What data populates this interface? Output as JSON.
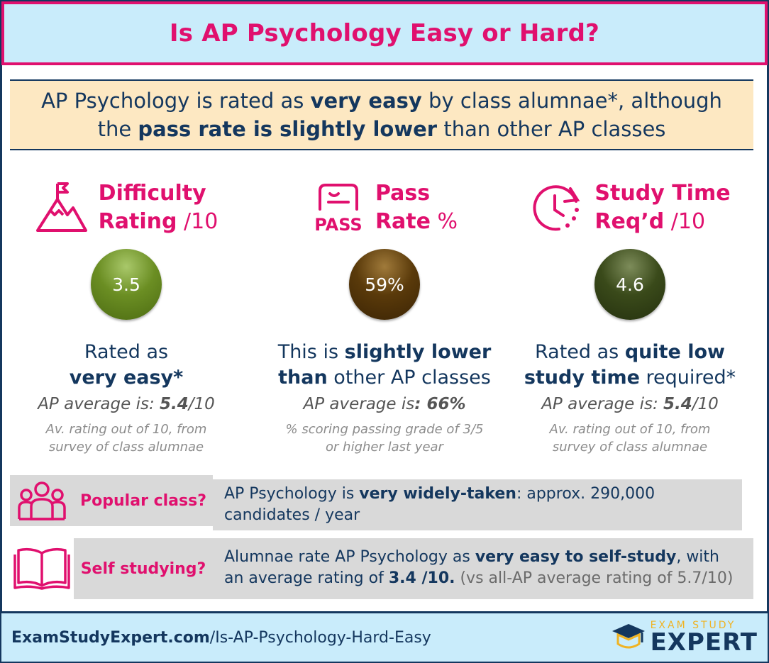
{
  "title": "Is AP Psychology Easy or Hard?",
  "summary": {
    "line1_a": "AP Psychology is rated as ",
    "line1_b": "very easy",
    "line1_c": " by class alumnae*, although",
    "line2_a": "the ",
    "line2_b": "pass rate is slightly lower",
    "line2_c": " than other AP classes"
  },
  "colors": {
    "accent": "#e0106e",
    "navy": "#14375e",
    "title_bg": "#c9ecfb",
    "summary_bg": "#fde8c2",
    "row_bg": "#d9d9d9",
    "ball_difficulty": "#6b8e23",
    "ball_pass": "#5a3a0a",
    "ball_time": "#3a4a1a"
  },
  "difficulty": {
    "icon": "mountain-flag-icon",
    "title_line1": "Difficulty",
    "title_line2": "Rating",
    "unit": " /10",
    "value": "3.5",
    "verdict_a": "Rated as",
    "verdict_b": "very easy*",
    "avg_a": "AP average is: ",
    "avg_b": "5.4",
    "avg_c": "/10",
    "note_line1": "Av. rating out of 10, from",
    "note_line2": "survey of class alumnae"
  },
  "pass": {
    "icon": "pass-icon",
    "icon_text": "PASS",
    "title_line1": "Pass",
    "title_line2": "Rate",
    "unit": " %",
    "value": "59%",
    "verdict_a": "This is ",
    "verdict_b": "slightly lower",
    "verdict_c": "than",
    "verdict_d": " other AP classes",
    "avg_a": "AP average is",
    "avg_b": ": 66%",
    "note_line1": "% scoring passing grade of 3/5",
    "note_line2": "or higher last year"
  },
  "study": {
    "icon": "clock-icon",
    "title_line1": "Study Time",
    "title_line2": "Req’d",
    "unit": " /10",
    "value": "4.6",
    "verdict_a": "Rated as ",
    "verdict_b": "quite low",
    "verdict_c": "study time",
    "verdict_d": " required*",
    "avg_a": "AP average is: ",
    "avg_b": "5.4",
    "avg_c": "/10",
    "note_line1": "Av. rating out of 10, from",
    "note_line2": "survey of class alumnae"
  },
  "popular": {
    "icon": "group-icon",
    "label": "Popular class?",
    "text_a": "AP Psychology is ",
    "text_b": "very widely-taken",
    "text_c": ": approx. 290,000  candidates / year"
  },
  "self_study": {
    "icon": "open-book-icon",
    "label": "Self studying?",
    "text_a": "Alumnae rate AP Psychology as ",
    "text_b": "very easy to self-study",
    "text_c": ", with an average rating of ",
    "text_d": "3.4 /10.",
    "text_e": " (vs all-AP average rating of 5.7/10)"
  },
  "footer": {
    "url_bold": "ExamStudyExpert.com",
    "url_rest": "/Is-AP-Psychology-Hard-Easy",
    "logo_top": "EXAM STUDY",
    "logo_bottom": "EXPERT",
    "logo_icon": "graduation-cap-icon"
  }
}
